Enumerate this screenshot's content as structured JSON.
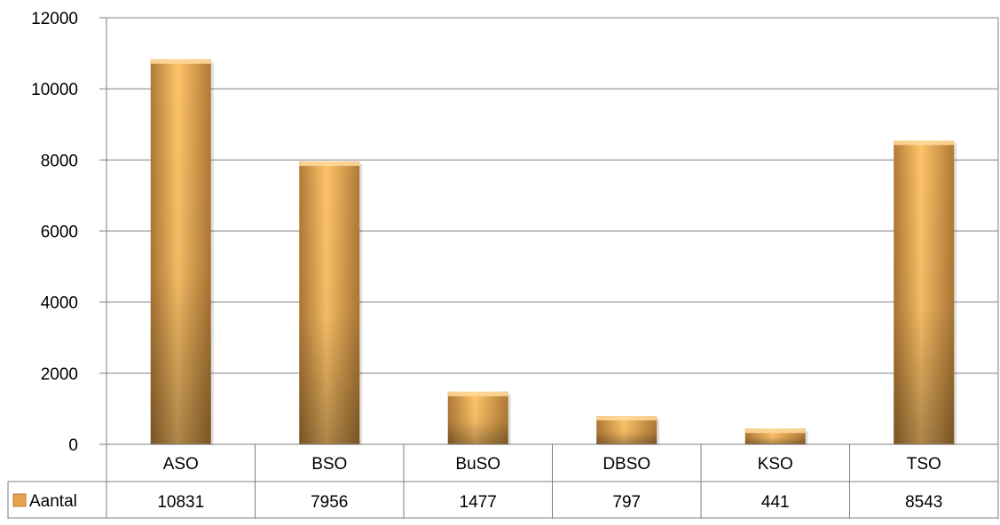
{
  "chart_data": {
    "type": "bar",
    "categories": [
      "ASO",
      "BSO",
      "BuSO",
      "DBSO",
      "KSO",
      "TSO"
    ],
    "series": [
      {
        "name": "Aantal",
        "values": [
          10831,
          7956,
          1477,
          797,
          441,
          8543
        ]
      }
    ],
    "ylim": [
      0,
      12000
    ],
    "yticks": [
      "0",
      "2000",
      "4000",
      "6000",
      "8000",
      "10000",
      "12000"
    ],
    "grid": true,
    "data_table": true,
    "colors": {
      "bar_light": "#FFC46A",
      "bar_dark": "#B07A35",
      "bar_mid": "#E9A34F",
      "grid": "#7F7F7F"
    }
  }
}
